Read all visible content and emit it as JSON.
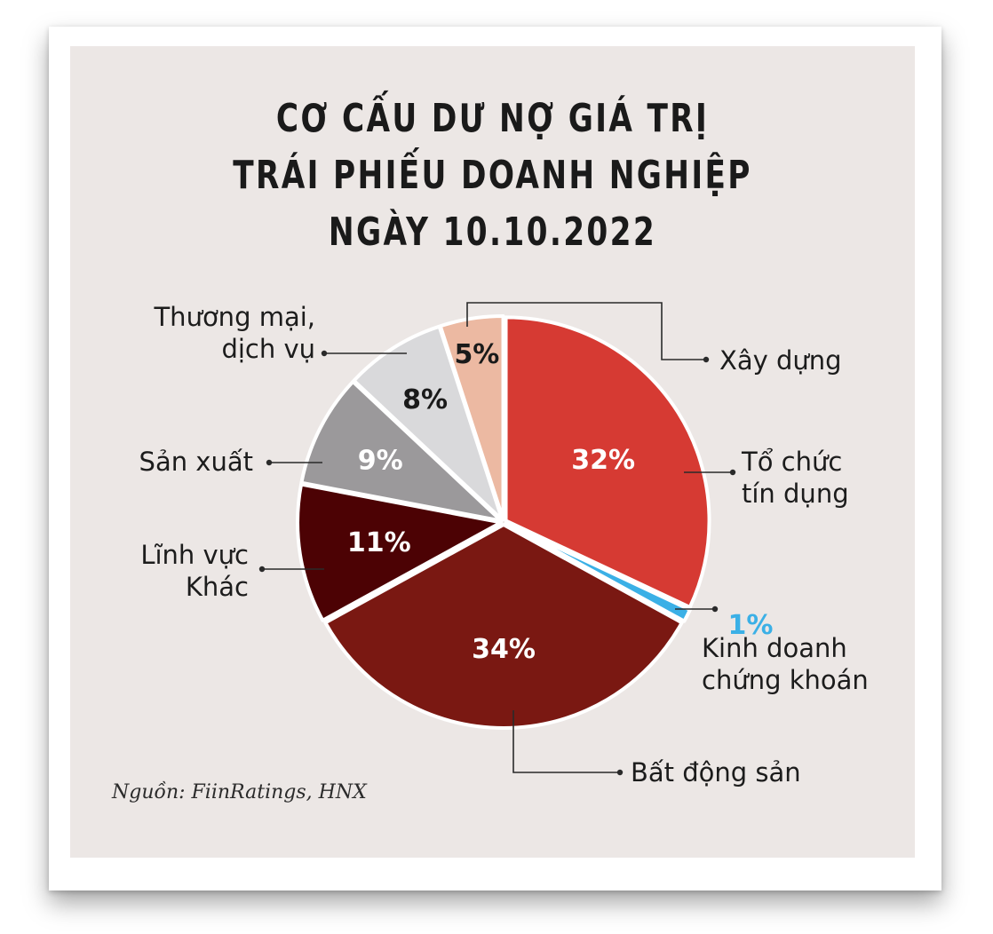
{
  "title_lines": [
    "CƠ CẤU DƯ NỢ GIÁ TRỊ",
    "TRÁI PHIẾU DOANH NGHIỆP",
    "NGÀY 10.10.2022"
  ],
  "source": "Nguồn: FiinRatings, HNX",
  "chart_data": {
    "type": "pie",
    "title": "CƠ CẤU DƯ NỢ GIÁ TRỊ TRÁI PHIẾU DOANH NGHIỆP NGÀY 10.10.2022",
    "unit": "%",
    "slices": [
      {
        "label": [
          "Tổ chức",
          "tín dụng"
        ],
        "value": 32,
        "value_label": "32%",
        "color": "#d63a33",
        "text_color": "#ffffff"
      },
      {
        "label": [
          "Kinh doanh",
          "chứng khoán"
        ],
        "value": 1,
        "value_label": "1%",
        "color": "#3bb0e6",
        "text_color": "#3bb0e6"
      },
      {
        "label": [
          "Bất động sản"
        ],
        "value": 34,
        "value_label": "34%",
        "color": "#7a1812",
        "text_color": "#ffffff"
      },
      {
        "label": [
          "Lĩnh vực",
          "Khác"
        ],
        "value": 11,
        "value_label": "11%",
        "color": "#4c0204",
        "text_color": "#ffffff"
      },
      {
        "label": [
          "Sản xuất"
        ],
        "value": 9,
        "value_label": "9%",
        "color": "#9b999b",
        "text_color": "#ffffff"
      },
      {
        "label": [
          "Thương mại,",
          "dịch vụ"
        ],
        "value": 8,
        "value_label": "8%",
        "color": "#d9d9db",
        "text_color": "#1a1a1a"
      },
      {
        "label": [
          "Xây dựng"
        ],
        "value": 5,
        "value_label": "5%",
        "color": "#ecb9a2",
        "text_color": "#1a1a1a"
      }
    ]
  }
}
